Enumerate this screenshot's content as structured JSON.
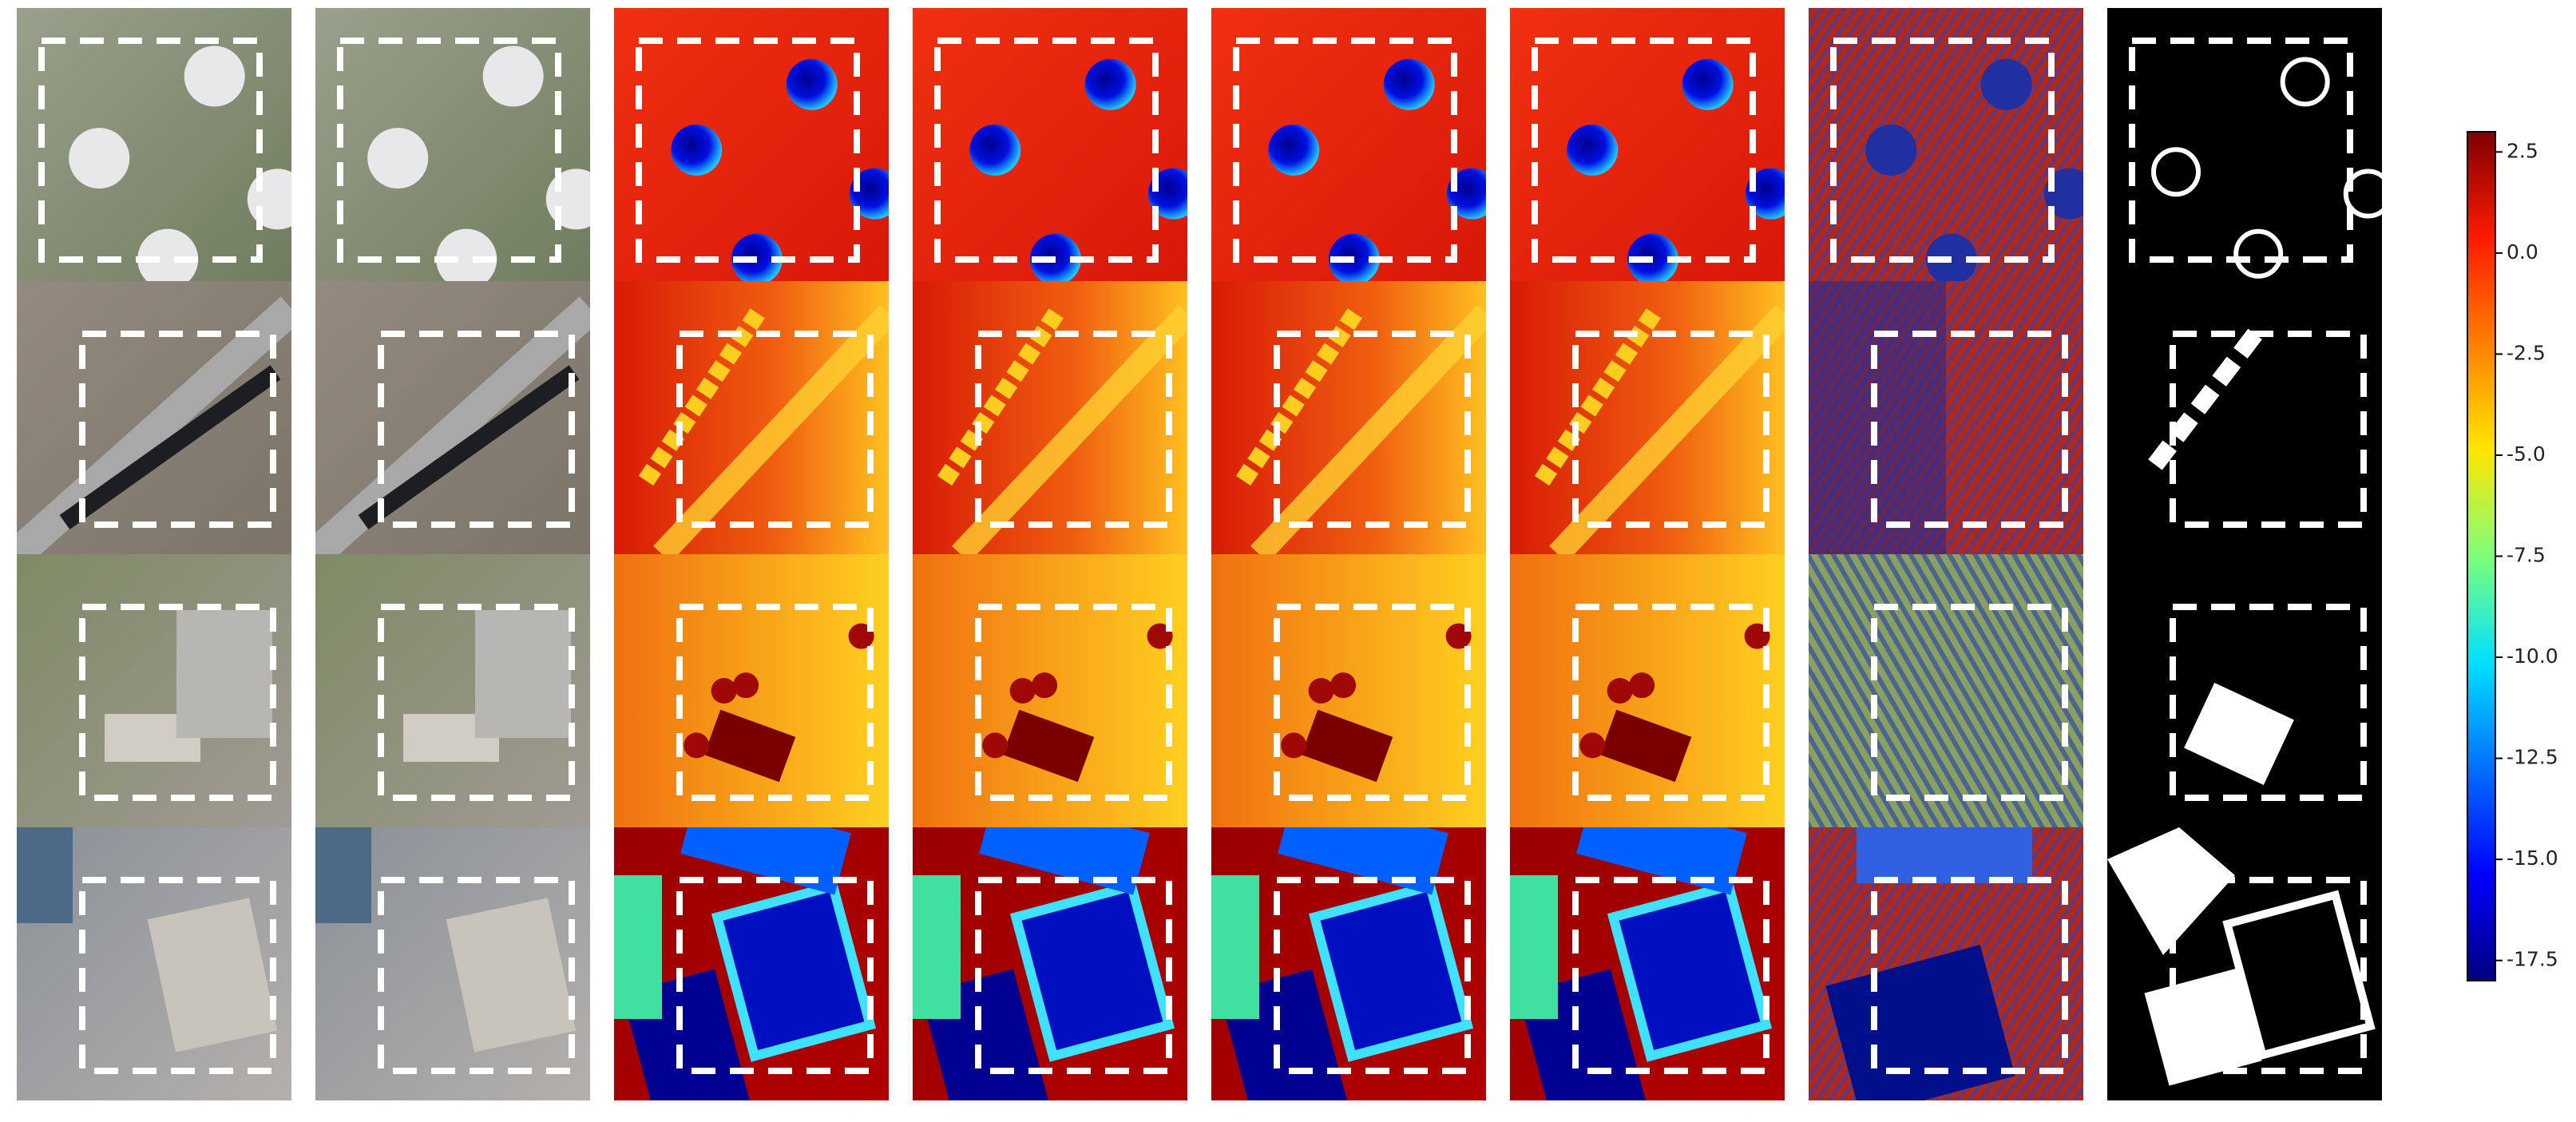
{
  "chart_data": {
    "type": "colorbar",
    "colormap": "jet",
    "ylim": [
      -18,
      3
    ],
    "yticks": [
      2.5,
      {
        "value": 0,
        "label": "0.0"
      },
      -2.5,
      {
        "value": -5,
        "label": "-5.0"
      },
      -7.5,
      {
        "value": -10,
        "label": "-10.0"
      },
      -12.5,
      {
        "value": -15,
        "label": "-15.0"
      },
      -17.5
    ]
  }
}
